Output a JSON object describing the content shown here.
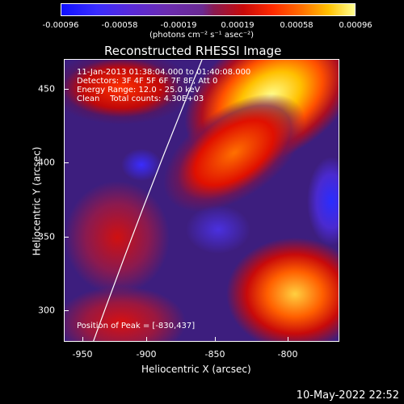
{
  "colorbar": {
    "ticks": [
      "-0.00096",
      "-0.00058",
      "-0.00019",
      "0.00019",
      "0.00058",
      "0.00096"
    ],
    "unit": "(photons cm⁻² s⁻¹ asec⁻²)"
  },
  "plot": {
    "title": "Reconstructed RHESSI Image",
    "info_line1": "11-Jan-2013 01:38:04.000 to 01:40:08.000",
    "info_line2": "Detectors: 3F 4F 5F 6F 7F 8F, Att 0",
    "info_line3": "Energy Range: 12.0 - 25.0 keV",
    "info_line4": "Clean    Total counts: 4.30E+03",
    "peak_text": "Position of Peak = [-830,437]",
    "xlabel": "Heliocentric X (arcsec)",
    "ylabel": "Heliocentric Y (arcsec)",
    "xticks": [
      "-950",
      "-900",
      "-850",
      "-800"
    ],
    "yticks": [
      "450",
      "400",
      "350",
      "300"
    ]
  },
  "footer": {
    "date": "10-May-2022 22:52"
  }
}
